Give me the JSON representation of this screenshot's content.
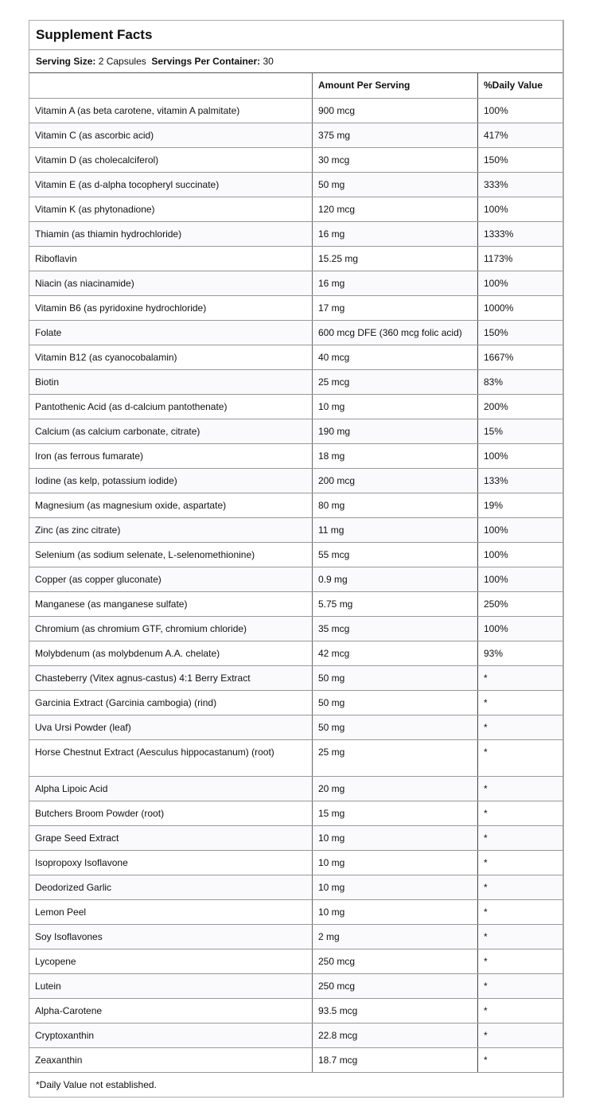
{
  "title": "Supplement Facts",
  "serving": {
    "size_label": "Serving Size:",
    "size_value": "2 Capsules",
    "per_container_label": "Servings Per Container:",
    "per_container_value": "30"
  },
  "headers": [
    "",
    "Amount Per Serving",
    "%Daily Value"
  ],
  "rows": [
    [
      "Vitamin A (as beta carotene, vitamin A palmitate)",
      "900 mcg",
      "100%"
    ],
    [
      "Vitamin C (as ascorbic acid)",
      "375 mg",
      "417%"
    ],
    [
      "Vitamin D (as cholecalciferol)",
      "30 mcg",
      "150%"
    ],
    [
      "Vitamin E (as d-alpha tocopheryl succinate)",
      "50 mg",
      "333%"
    ],
    [
      "Vitamin K (as phytonadione)",
      "120 mcg",
      "100%"
    ],
    [
      "Thiamin (as thiamin hydrochloride)",
      "16 mg",
      "1333%"
    ],
    [
      "Riboflavin",
      "15.25 mg",
      "1173%"
    ],
    [
      "Niacin (as niacinamide)",
      "16 mg",
      "100%"
    ],
    [
      "Vitamin B6 (as pyridoxine hydrochloride)",
      "17 mg",
      "1000%"
    ],
    [
      "Folate",
      "600 mcg DFE (360 mcg folic acid)",
      "150%"
    ],
    [
      "Vitamin B12 (as cyanocobalamin)",
      "40 mcg",
      "1667%"
    ],
    [
      "Biotin",
      "25 mcg",
      "83%"
    ],
    [
      "Pantothenic Acid (as d-calcium pantothenate)",
      "10 mg",
      "200%"
    ],
    [
      "Calcium (as calcium carbonate, citrate)",
      "190 mg",
      "15%"
    ],
    [
      "Iron (as ferrous fumarate)",
      "18 mg",
      "100%"
    ],
    [
      "Iodine (as kelp, potassium iodide)",
      "200 mcg",
      "133%"
    ],
    [
      "Magnesium (as magnesium oxide, aspartate)",
      "80 mg",
      "19%"
    ],
    [
      "Zinc (as zinc citrate)",
      "11 mg",
      "100%"
    ],
    [
      "Selenium (as sodium selenate, L-selenomethionine)",
      "55 mcg",
      "100%"
    ],
    [
      "Copper (as copper gluconate)",
      "0.9 mg",
      "100%"
    ],
    [
      "Manganese (as manganese sulfate)",
      "5.75 mg",
      "250%"
    ],
    [
      "Chromium (as chromium GTF, chromium chloride)",
      "35 mcg",
      "100%"
    ],
    [
      "Molybdenum (as molybdenum A.A. chelate)",
      "42 mcg",
      "93%"
    ],
    [
      "Chasteberry (Vitex agnus-castus) 4:1 Berry Extract",
      "50 mg",
      "*"
    ],
    [
      "Garcinia Extract (Garcinia cambogia) (rind)",
      "50 mg",
      "*"
    ],
    [
      "Uva Ursi Powder (leaf)",
      "50 mg",
      "*"
    ],
    [
      "Horse Chestnut Extract (Aesculus hippocastanum) (root)",
      "25 mg",
      "*"
    ],
    [
      "Alpha Lipoic Acid",
      "20 mg",
      "*"
    ],
    [
      "Butchers Broom Powder (root)",
      "15 mg",
      "*"
    ],
    [
      "Grape Seed Extract",
      "10 mg",
      "*"
    ],
    [
      "Isopropoxy Isoflavone",
      "10 mg",
      "*"
    ],
    [
      "Deodorized Garlic",
      "10 mg",
      "*"
    ],
    [
      "Lemon Peel",
      "10 mg",
      "*"
    ],
    [
      "Soy Isoflavones",
      "2 mg",
      "*"
    ],
    [
      "Lycopene",
      "250 mcg",
      "*"
    ],
    [
      "Lutein",
      "250 mcg",
      "*"
    ],
    [
      "Alpha-Carotene",
      "93.5 mcg",
      "*"
    ],
    [
      "Cryptoxanthin",
      "22.8 mcg",
      "*"
    ],
    [
      "Zeaxanthin",
      "18.7 mcg",
      "*"
    ]
  ],
  "footer": "*Daily Value not established."
}
